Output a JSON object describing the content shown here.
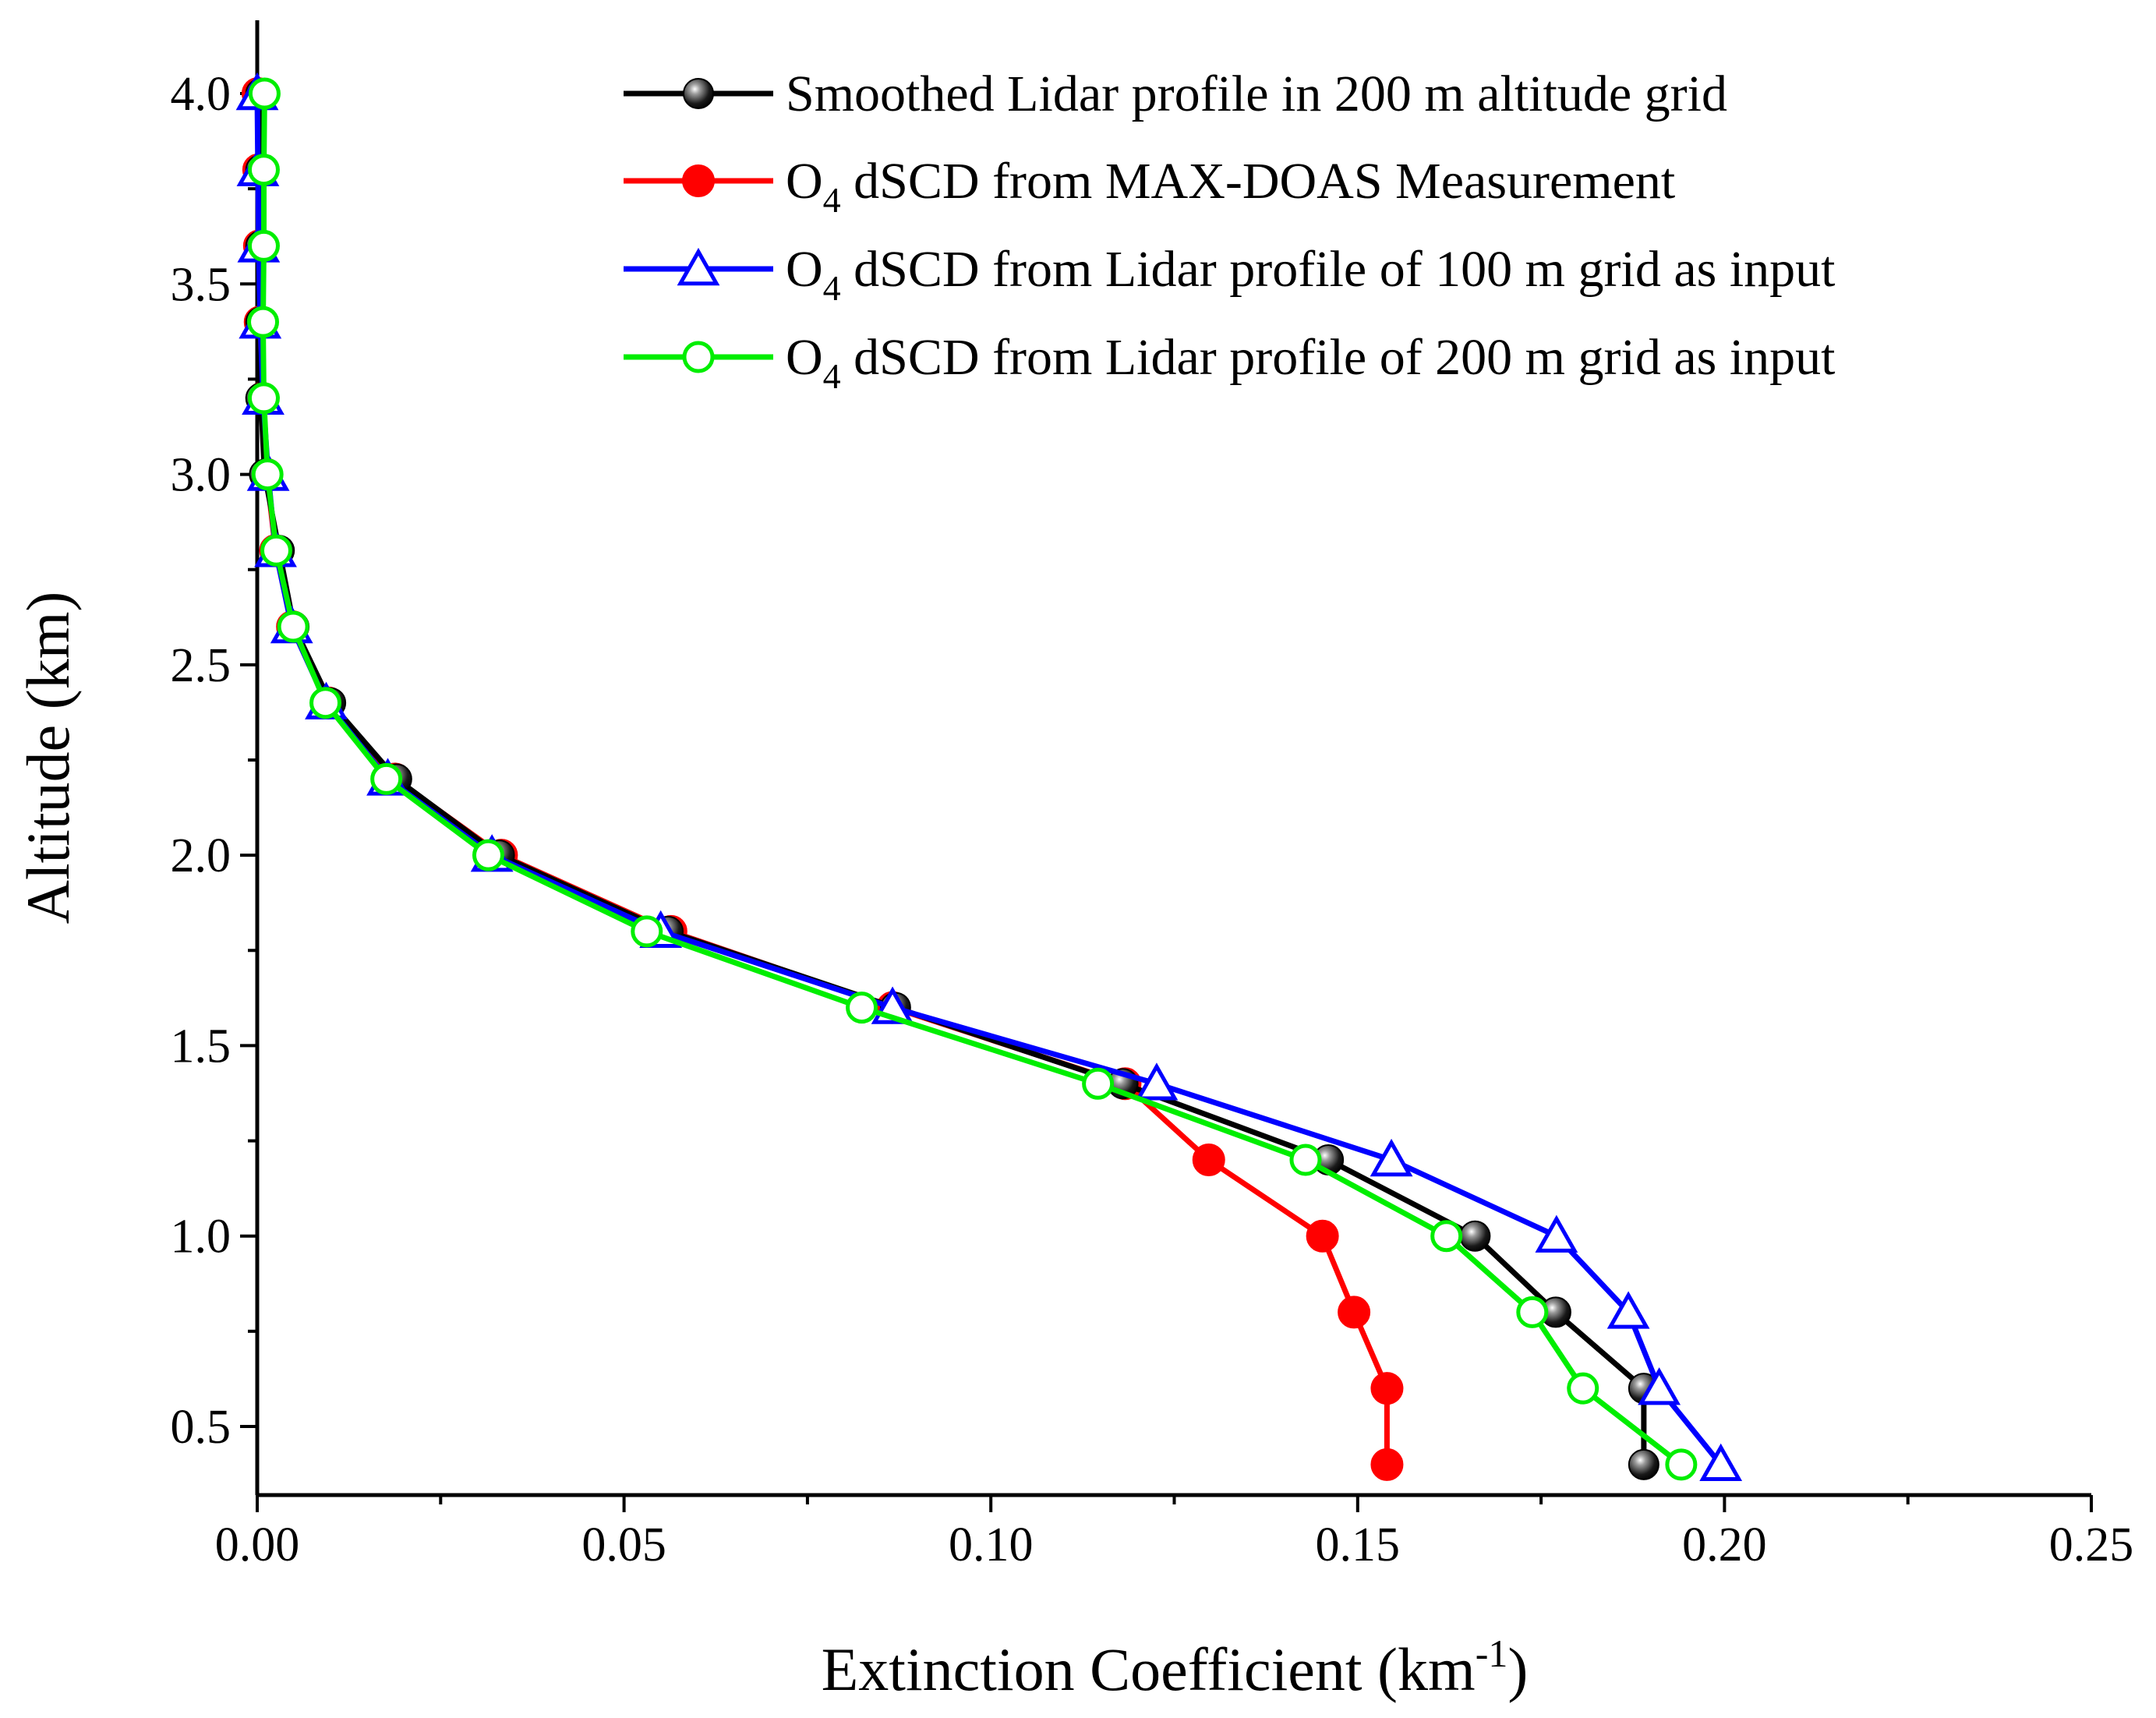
{
  "chart_data": {
    "type": "line",
    "xlabel": "Extinction Coefficient (km",
    "xlabel_sup": "-1",
    "xlabel_suffix": ")",
    "ylabel": "Altitude (km)",
    "xlim": [
      0,
      0.25
    ],
    "ylim": [
      0.3,
      4.1
    ],
    "x_ticks": [
      0.0,
      0.05,
      0.1,
      0.15,
      0.2,
      0.25
    ],
    "x_tick_labels": [
      "0.00",
      "0.05",
      "0.10",
      "0.15",
      "0.20",
      "0.25"
    ],
    "y_ticks": [
      0.5,
      1.0,
      1.5,
      2.0,
      2.5,
      3.0,
      3.5,
      4.0
    ],
    "y_tick_labels": [
      "0.5",
      "1.0",
      "1.5",
      "2.0",
      "2.5",
      "3.0",
      "3.5",
      "4.0"
    ],
    "grid": false,
    "legend_position": "top-right",
    "series": [
      {
        "name": "Smoothed Lidar profile in 200 m altitude grid",
        "legend_main": "Smoothed Lidar profile in 200 m altitude grid",
        "legend_sub": "",
        "legend_rest": "",
        "color": "#000000",
        "marker": "sphere",
        "x": [
          0.189,
          0.189,
          0.177,
          0.166,
          0.146,
          0.118,
          0.087,
          0.056,
          0.033,
          0.019,
          0.01,
          0.005,
          0.003,
          0.001,
          0.0005,
          0.0005,
          0.0005,
          0.0005,
          0.0005
        ],
        "y": [
          0.4,
          0.6,
          0.8,
          1.0,
          1.2,
          1.4,
          1.6,
          1.8,
          2.0,
          2.2,
          2.4,
          2.6,
          2.8,
          3.0,
          3.2,
          3.4,
          3.6,
          3.8,
          4.0
        ]
      },
      {
        "name": "O4 dSCD from MAX-DOAS Measurement",
        "legend_main": "O",
        "legend_sub": "4",
        "legend_rest": " dSCD from MAX-DOAS Measurement",
        "color": "#ff0000",
        "marker": "filled-circle",
        "x": [
          0.154,
          0.154,
          0.1495,
          0.1452,
          0.1297,
          0.1183,
          0.0866,
          0.0564,
          0.0333,
          0.0188,
          0.0097,
          0.0048,
          0.0025,
          0.0013,
          0.0007,
          0.0004,
          0.0003,
          0.0002,
          0.0001
        ],
        "y": [
          0.4,
          0.6,
          0.8,
          1.0,
          1.2,
          1.4,
          1.6,
          1.8,
          2.0,
          2.2,
          2.4,
          2.6,
          2.8,
          3.0,
          3.2,
          3.4,
          3.6,
          3.8,
          4.0
        ]
      },
      {
        "name": "O4 dSCD from Lidar profile of 100 m grid as input",
        "legend_main": "O",
        "legend_sub": "4",
        "legend_rest": " dSCD from Lidar profile of 100 m grid as input",
        "color": "#0000ff",
        "marker": "open-triangle",
        "x": [
          0.1995,
          0.1911,
          0.1869,
          0.1771,
          0.1546,
          0.1226,
          0.0866,
          0.055,
          0.032,
          0.0178,
          0.0094,
          0.0047,
          0.0025,
          0.0015,
          0.0008,
          0.0004,
          0.0002,
          0.0001,
          0.0
        ],
        "y": [
          0.4,
          0.6,
          0.8,
          1.0,
          1.2,
          1.4,
          1.6,
          1.8,
          2.0,
          2.2,
          2.4,
          2.6,
          2.8,
          3.0,
          3.2,
          3.4,
          3.6,
          3.8,
          4.0
        ]
      },
      {
        "name": "O4 dSCD from Lidar profile of 200 m grid as input",
        "legend_main": "O",
        "legend_sub": "4",
        "legend_rest": " dSCD from Lidar profile of 200 m grid as input",
        "color": "#00ee00",
        "marker": "open-circle",
        "x": [
          0.1941,
          0.1807,
          0.1738,
          0.1621,
          0.1429,
          0.1146,
          0.0824,
          0.0531,
          0.0315,
          0.0176,
          0.0093,
          0.0049,
          0.0026,
          0.0014,
          0.0009,
          0.0008,
          0.0009,
          0.0009,
          0.001
        ],
        "y": [
          0.4,
          0.6,
          0.8,
          1.0,
          1.2,
          1.4,
          1.6,
          1.8,
          2.0,
          2.2,
          2.4,
          2.6,
          2.8,
          3.0,
          3.2,
          3.4,
          3.6,
          3.8,
          4.0
        ]
      }
    ]
  }
}
